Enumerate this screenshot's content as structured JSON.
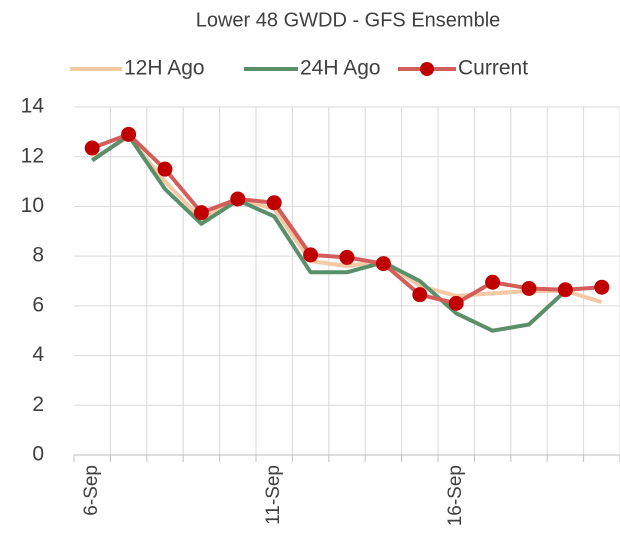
{
  "chart_data": {
    "type": "line",
    "title": "Lower 48 GWDD - GFS Ensemble",
    "categories": [
      "6-Sep",
      null,
      null,
      null,
      null,
      "11-Sep",
      null,
      null,
      null,
      null,
      "16-Sep",
      null,
      null,
      null,
      null
    ],
    "series": [
      {
        "name": "12H Ago",
        "color": "#f5c9a3",
        "marker": false,
        "values": [
          11.9,
          12.8,
          11.0,
          9.5,
          10.3,
          9.9,
          7.8,
          7.6,
          7.8,
          6.8,
          6.4,
          6.5,
          6.6,
          6.6,
          6.15
        ]
      },
      {
        "name": "24H Ago",
        "color": "#5a8f6a",
        "marker": false,
        "values": [
          11.85,
          12.85,
          10.7,
          9.3,
          10.25,
          9.6,
          7.35,
          7.35,
          7.75,
          7.0,
          5.7,
          5.0,
          5.25,
          6.6,
          null
        ]
      },
      {
        "name": "Current",
        "color": "#d35d5a",
        "marker": true,
        "marker_color": "#c00000",
        "values": [
          12.35,
          12.9,
          11.5,
          9.75,
          10.3,
          10.15,
          8.05,
          7.95,
          7.7,
          6.45,
          6.1,
          6.95,
          6.7,
          6.65,
          6.75
        ]
      }
    ],
    "ylim": [
      0,
      14
    ],
    "yticks": [
      0,
      2,
      4,
      6,
      8,
      10,
      12,
      14
    ],
    "grid": true
  }
}
